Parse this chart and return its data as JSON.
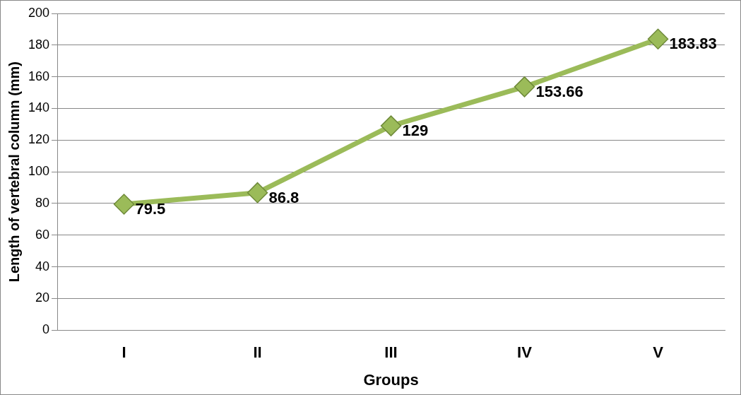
{
  "chart_data": {
    "type": "line",
    "xlabel": "Groups",
    "ylabel": "Length of vertebral column (mm)",
    "categories": [
      "I",
      "II",
      "III",
      "IV",
      "V"
    ],
    "series": [
      {
        "color": "#9bbb59",
        "values": [
          79.5,
          86.8,
          129,
          153.66,
          183.83
        ]
      }
    ],
    "ylim": [
      0,
      200
    ],
    "yticks": [
      0,
      20,
      40,
      60,
      80,
      100,
      120,
      140,
      160,
      180,
      200
    ],
    "grid": "y",
    "marker": "diamond",
    "line_style": "solid",
    "data_labels": true
  }
}
